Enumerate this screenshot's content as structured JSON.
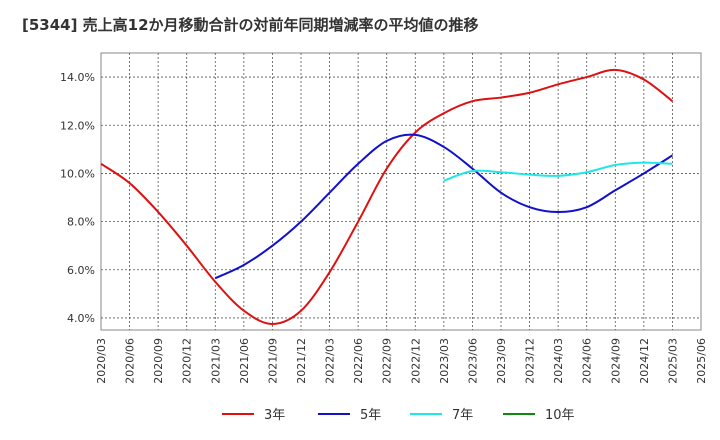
{
  "chart_data": {
    "type": "line",
    "title": "[5344]  売上高12か月移動合計の対前年同期増減率の平均値の推移",
    "xlabel": "",
    "ylabel": "",
    "ylim": [
      3.5,
      15.0
    ],
    "yticks": [
      "4.0%",
      "6.0%",
      "8.0%",
      "10.0%",
      "12.0%",
      "14.0%"
    ],
    "ytick_values": [
      4,
      6,
      8,
      10,
      12,
      14
    ],
    "x_tick_labels": [
      "2020/03",
      "2020/06",
      "2020/09",
      "2020/12",
      "2021/03",
      "2021/06",
      "2021/09",
      "2021/12",
      "2022/03",
      "2022/06",
      "2022/09",
      "2022/12",
      "2023/03",
      "2023/06",
      "2023/09",
      "2023/12",
      "2024/03",
      "2024/06",
      "2024/09",
      "2024/12",
      "2025/03",
      "2025/06"
    ],
    "grid": true,
    "legend_position": "bottom",
    "series": [
      {
        "name": "3年",
        "color": "#dd1111",
        "x": [
          "2020/03",
          "2020/06",
          "2020/09",
          "2020/12",
          "2021/03",
          "2021/06",
          "2021/09",
          "2021/12",
          "2022/03",
          "2022/06",
          "2022/09",
          "2022/12",
          "2023/03",
          "2023/06",
          "2023/09",
          "2023/12",
          "2024/03",
          "2024/06",
          "2024/09",
          "2024/12",
          "2025/03"
        ],
        "values": [
          10.4,
          9.6,
          8.4,
          7.0,
          5.5,
          4.3,
          3.75,
          4.3,
          5.9,
          8.0,
          10.2,
          11.7,
          12.5,
          13.0,
          13.15,
          13.35,
          13.7,
          14.0,
          14.3,
          13.9,
          13.0
        ]
      },
      {
        "name": "5年",
        "color": "#1111cc",
        "x": [
          "2021/03",
          "2021/06",
          "2021/09",
          "2021/12",
          "2022/03",
          "2022/06",
          "2022/09",
          "2022/12",
          "2023/03",
          "2023/06",
          "2023/09",
          "2023/12",
          "2024/03",
          "2024/06",
          "2024/09",
          "2024/12",
          "2025/03"
        ],
        "values": [
          5.65,
          6.2,
          7.0,
          8.0,
          9.2,
          10.4,
          11.35,
          11.6,
          11.1,
          10.2,
          9.2,
          8.6,
          8.4,
          8.6,
          9.3,
          10.0,
          10.75
        ]
      },
      {
        "name": "7年",
        "color": "#22e5e5",
        "x": [
          "2023/03",
          "2023/06",
          "2023/09",
          "2023/12",
          "2024/03",
          "2024/06",
          "2024/09",
          "2024/12",
          "2025/03"
        ],
        "values": [
          9.7,
          10.1,
          10.05,
          9.95,
          9.9,
          10.05,
          10.35,
          10.45,
          10.4
        ]
      },
      {
        "name": "10年",
        "color": "#118811",
        "x": [],
        "values": []
      }
    ]
  }
}
